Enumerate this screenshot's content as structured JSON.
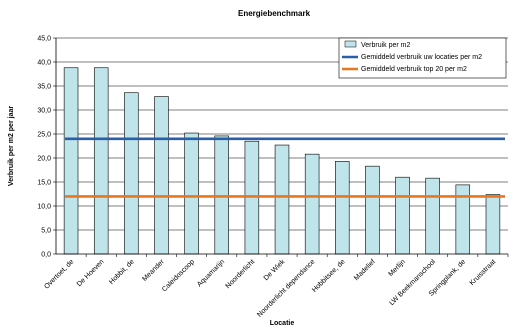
{
  "chart_data": {
    "type": "bar",
    "title": "Energiebenchmark",
    "xlabel": "Locatie",
    "ylabel": "Verbruik per m2 per jaar",
    "ylim": [
      0,
      45
    ],
    "y_ticks": [
      "0,0",
      "5,0",
      "10,0",
      "15,0",
      "20,0",
      "25,0",
      "30,0",
      "35,0",
      "40,0",
      "45,0"
    ],
    "grid": "horizontal",
    "legend_position": "top-right",
    "categories": [
      "Overtoet, de",
      "De Hoeven",
      "Hobbit, de",
      "Meander",
      "Caleidoscoop",
      "Aquamarijn",
      "Noorderlicht",
      "De Wiek",
      "Noorderlicht dependance",
      "Hobbitsee, de",
      "Madelief",
      "Merlijn",
      "LW Beekmanschool",
      "Springplank, de",
      "Kruisstraat"
    ],
    "series": [
      {
        "name": "Verbruik per m2",
        "kind": "bar",
        "color": "#bfe4ea",
        "values": [
          38.8,
          38.8,
          33.6,
          32.8,
          25.2,
          24.6,
          23.5,
          22.7,
          20.8,
          19.3,
          18.3,
          16.0,
          15.8,
          14.4,
          12.4
        ]
      },
      {
        "name": "Gemiddeld verbruik uw locaties per m2",
        "kind": "line",
        "color": "#2a5ea8",
        "value": 24.0
      },
      {
        "name": "Gemiddeld verbruik top 20 per m2",
        "kind": "line",
        "color": "#e8761e",
        "value": 12.0
      }
    ]
  }
}
